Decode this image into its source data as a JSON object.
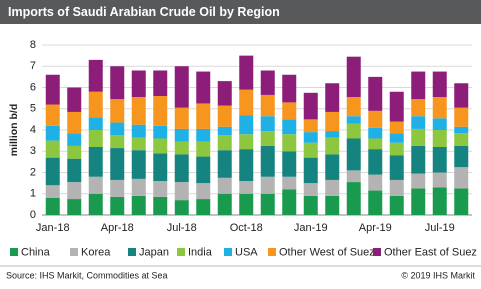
{
  "chart_data": {
    "type": "stacked-bar",
    "title": "Imports of Saudi Arabian Crude Oil by Region",
    "y_label": "million b/d",
    "categories": [
      "Jan-18",
      null,
      null,
      "Apr-18",
      null,
      null,
      "Jul-18",
      null,
      null,
      "Oct-18",
      null,
      null,
      "Jan-19",
      null,
      null,
      "Apr-19",
      null,
      null,
      "Jul-19",
      null
    ],
    "series": [
      {
        "name": "China",
        "color": "#1a9a4e",
        "values": [
          0.8,
          0.75,
          1.0,
          0.85,
          0.9,
          0.85,
          0.7,
          0.75,
          1.0,
          1.0,
          1.0,
          1.2,
          0.9,
          0.9,
          1.55,
          1.15,
          0.9,
          1.25,
          1.3,
          1.25
        ]
      },
      {
        "name": "Korea",
        "color": "#b3b3b3",
        "values": [
          0.6,
          0.8,
          0.8,
          0.8,
          0.8,
          0.75,
          0.85,
          0.75,
          0.75,
          0.6,
          0.8,
          0.6,
          0.6,
          0.75,
          0.55,
          0.75,
          0.75,
          0.7,
          0.7,
          1.0
        ]
      },
      {
        "name": "Japan",
        "color": "#15837f",
        "values": [
          1.3,
          1.1,
          1.4,
          1.5,
          1.35,
          1.3,
          1.3,
          1.25,
          1.3,
          1.5,
          1.45,
          1.2,
          1.2,
          1.2,
          1.5,
          1.2,
          1.15,
          1.3,
          1.2,
          1.0
        ]
      },
      {
        "name": "India",
        "color": "#8dc63f",
        "values": [
          0.8,
          0.6,
          0.8,
          0.6,
          0.6,
          0.7,
          0.6,
          0.7,
          0.7,
          0.7,
          0.7,
          0.8,
          0.7,
          0.8,
          0.7,
          0.5,
          0.6,
          0.8,
          0.8,
          0.6
        ]
      },
      {
        "name": "USA",
        "color": "#1fb1e6",
        "values": [
          0.7,
          0.6,
          0.6,
          0.6,
          0.6,
          0.6,
          0.6,
          0.6,
          0.4,
          0.9,
          0.7,
          0.7,
          0.5,
          0.3,
          0.35,
          0.5,
          0.45,
          0.6,
          0.55,
          0.3
        ]
      },
      {
        "name": "Other West of Suez",
        "color": "#f7961e",
        "values": [
          1.0,
          1.0,
          1.2,
          1.1,
          1.3,
          1.4,
          1.0,
          1.2,
          1.0,
          1.2,
          1.0,
          0.8,
          0.6,
          0.9,
          0.9,
          0.8,
          0.55,
          0.8,
          1.0,
          0.9
        ]
      },
      {
        "name": "Other East of Suez",
        "color": "#8c1d78",
        "values": [
          1.4,
          1.15,
          1.5,
          1.55,
          1.25,
          1.2,
          1.95,
          1.5,
          1.15,
          1.6,
          1.15,
          1.3,
          1.25,
          1.35,
          1.9,
          1.6,
          1.4,
          1.3,
          1.2,
          1.15
        ]
      }
    ],
    "ylim": [
      0,
      8
    ],
    "yticks": [
      0,
      1,
      2,
      3,
      4,
      5,
      6,
      7,
      8
    ],
    "grid": true,
    "source": "Source: IHS Markit, Commodities at Sea",
    "copyright": "© 2019 IHS Markit"
  }
}
